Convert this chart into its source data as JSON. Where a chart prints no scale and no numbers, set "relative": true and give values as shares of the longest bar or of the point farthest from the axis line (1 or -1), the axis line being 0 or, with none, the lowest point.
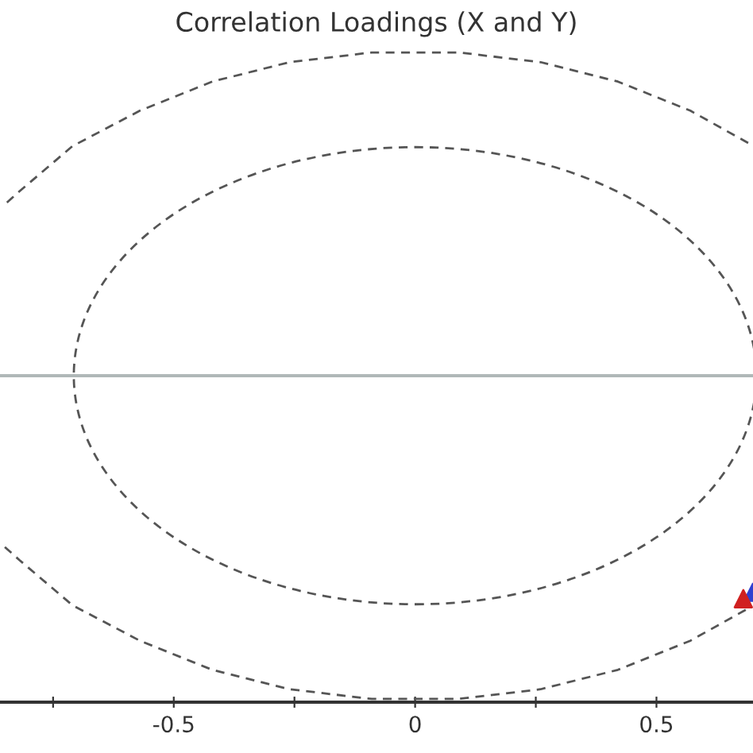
{
  "chart_data": {
    "type": "line",
    "title": "Correlation Loadings (X and Y)",
    "relative": true,
    "xlim": [
      -0.86,
      0.7
    ],
    "xticks": [
      {
        "value": -0.75,
        "label": null
      },
      -0.5,
      {
        "value": -0.25,
        "label": null
      },
      0,
      {
        "value": 0.25,
        "label": null
      },
      0.5
    ],
    "tick_labels": "x",
    "series": [
      {
        "color": "#555555",
        "line_style": "dashed",
        "x": [
          0.69,
          0.57,
          0.42,
          0.26,
          0.09,
          0,
          -0.09,
          -0.26,
          -0.42,
          -0.57,
          -0.71,
          -0.82,
          -0.85,
          null,
          -0.85,
          -0.82,
          -0.71,
          -0.57,
          -0.42,
          -0.26,
          -0.09,
          0,
          0.09,
          0.26,
          0.42,
          0.57,
          0.69
        ],
        "values": [
          0.72,
          0.82,
          0.91,
          0.97,
          1.0,
          1.0,
          1.0,
          0.97,
          0.91,
          0.82,
          0.71,
          0.57,
          0.53,
          null,
          -0.53,
          -0.57,
          -0.71,
          -0.82,
          -0.91,
          -0.97,
          -1.0,
          -1.0,
          -1.0,
          -0.97,
          -0.91,
          -0.82,
          -0.72
        ]
      },
      {
        "type": "scatter",
        "color": "#3040d0",
        "marker": "triangle",
        "x": [
          0.7
        ],
        "values": [
          -0.67
        ]
      },
      {
        "type": "scatter",
        "color": "#d02020",
        "marker": "triangle",
        "x": [
          0.68
        ],
        "values": [
          -0.69
        ]
      }
    ]
  }
}
